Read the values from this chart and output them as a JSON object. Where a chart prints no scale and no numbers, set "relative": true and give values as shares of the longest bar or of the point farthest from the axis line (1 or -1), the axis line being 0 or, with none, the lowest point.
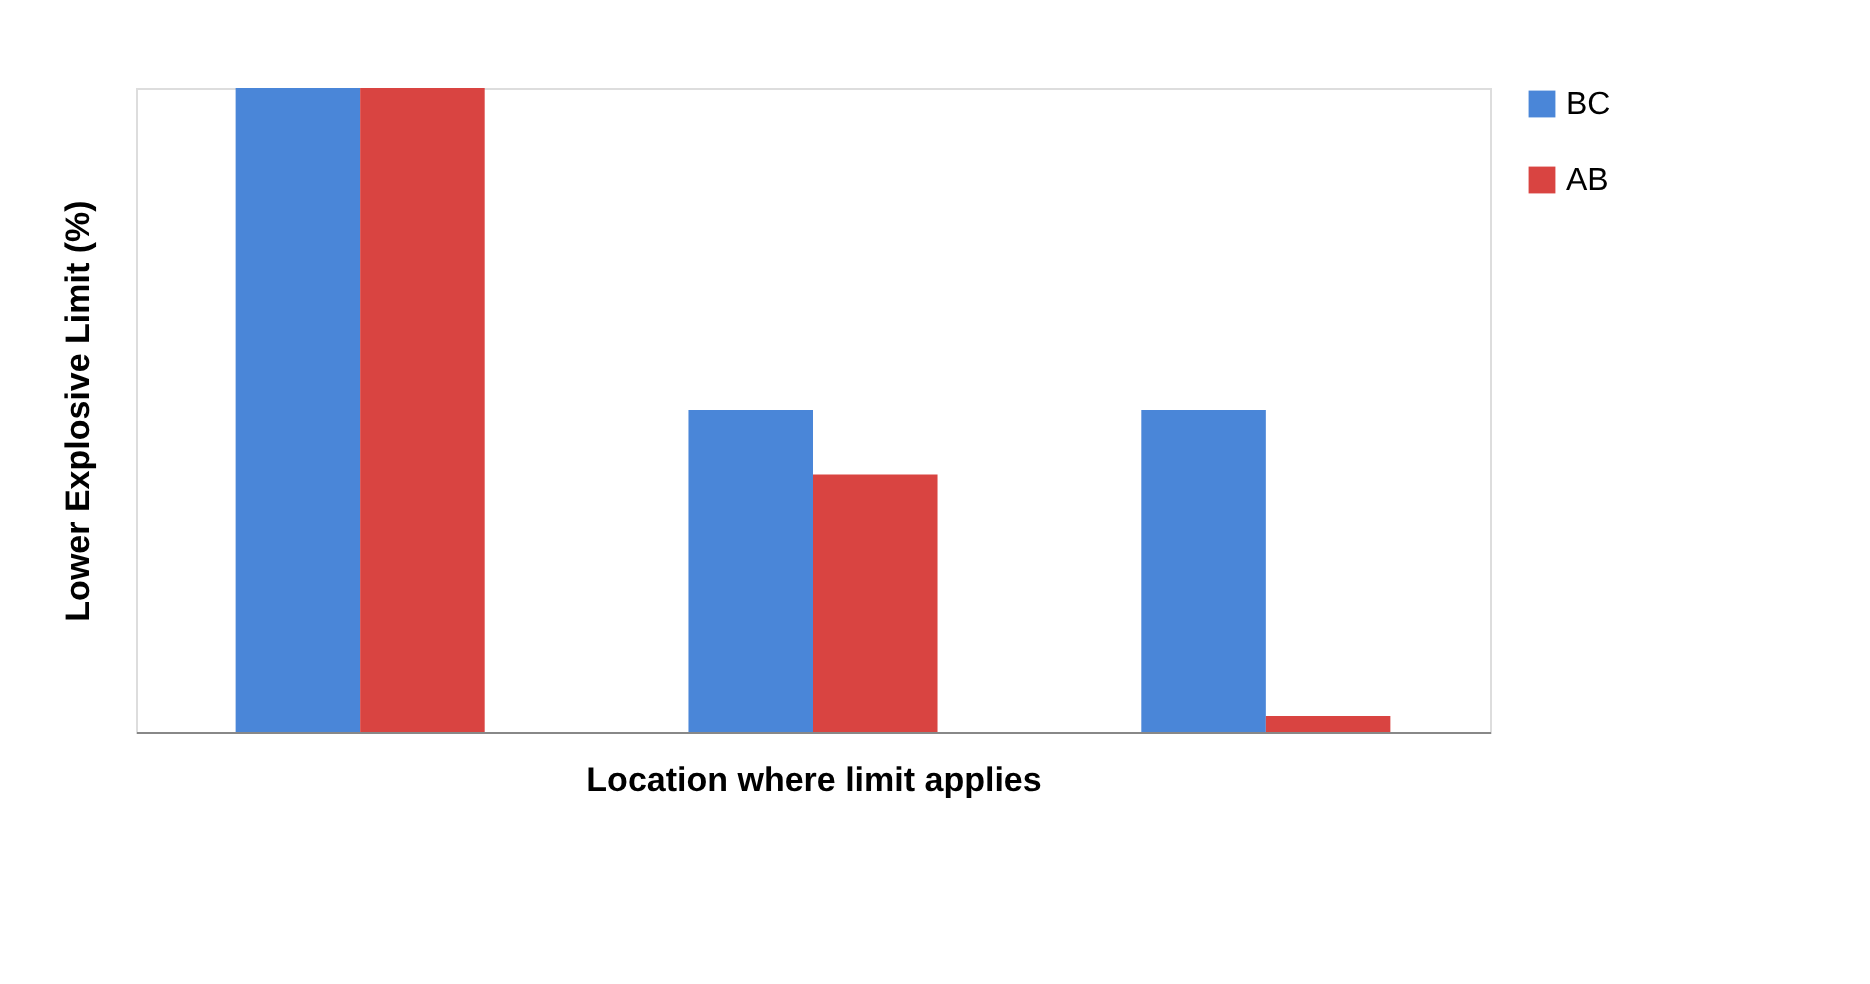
{
  "chart_data": {
    "type": "bar",
    "xlabel": "Location where limit applies",
    "ylabel": "Lower Explosive Limit (%)",
    "categories": [
      null,
      null,
      null
    ],
    "series": [
      {
        "name": "BC",
        "color": "#4a86d8",
        "values": [
          1,
          0.5,
          0.5
        ]
      },
      {
        "name": "AB",
        "color": "#d94441",
        "values": [
          1,
          0.4,
          0.025
        ]
      }
    ],
    "relative": true,
    "legend": "right",
    "tick_labels": false
  }
}
